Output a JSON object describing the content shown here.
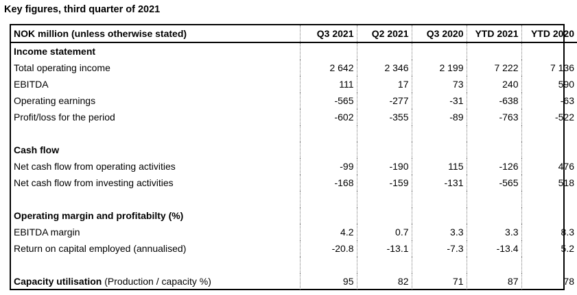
{
  "title": "Key figures, third quarter of 2021",
  "table": {
    "headers": [
      "NOK million (unless otherwise stated)",
      "Q3 2021",
      "Q2 2021",
      "Q3 2020",
      "YTD 2021",
      "YTD 2020"
    ],
    "sections": {
      "income": {
        "heading": "Income statement",
        "rows": [
          {
            "label": "Total operating income",
            "values": [
              "2 642",
              "2 346",
              "2 199",
              "7 222",
              "7 136"
            ]
          },
          {
            "label": "EBITDA",
            "values": [
              "111",
              "17",
              "73",
              "240",
              "590"
            ]
          },
          {
            "label": "Operating earnings",
            "values": [
              "-565",
              "-277",
              "-31",
              "-638",
              "-63"
            ]
          },
          {
            "label": "Profit/loss for the period",
            "values": [
              "-602",
              "-355",
              "-89",
              "-763",
              "-522"
            ]
          }
        ]
      },
      "cash": {
        "heading": "Cash flow",
        "rows": [
          {
            "label": "Net cash flow from operating activities",
            "values": [
              "-99",
              "-190",
              "115",
              "-126",
              "476"
            ]
          },
          {
            "label": "Net cash flow from investing activities",
            "values": [
              "-168",
              "-159",
              "-131",
              "-565",
              "518"
            ]
          }
        ]
      },
      "margin": {
        "heading": "Operating margin and profitabilty (%)",
        "rows": [
          {
            "label": "EBITDA margin",
            "values": [
              "4.2",
              "0.7",
              "3.3",
              "3.3",
              "8.3"
            ]
          },
          {
            "label": "Return on capital employed (annualised)",
            "values": [
              "-20.8",
              "-13.1",
              "-7.3",
              "-13.4",
              "5.2"
            ]
          }
        ]
      },
      "capacity": {
        "label_bold": "Capacity utilisation",
        "label_rest": " (Production / capacity %)",
        "values": [
          "95",
          "82",
          "71",
          "87",
          "78"
        ]
      }
    }
  }
}
